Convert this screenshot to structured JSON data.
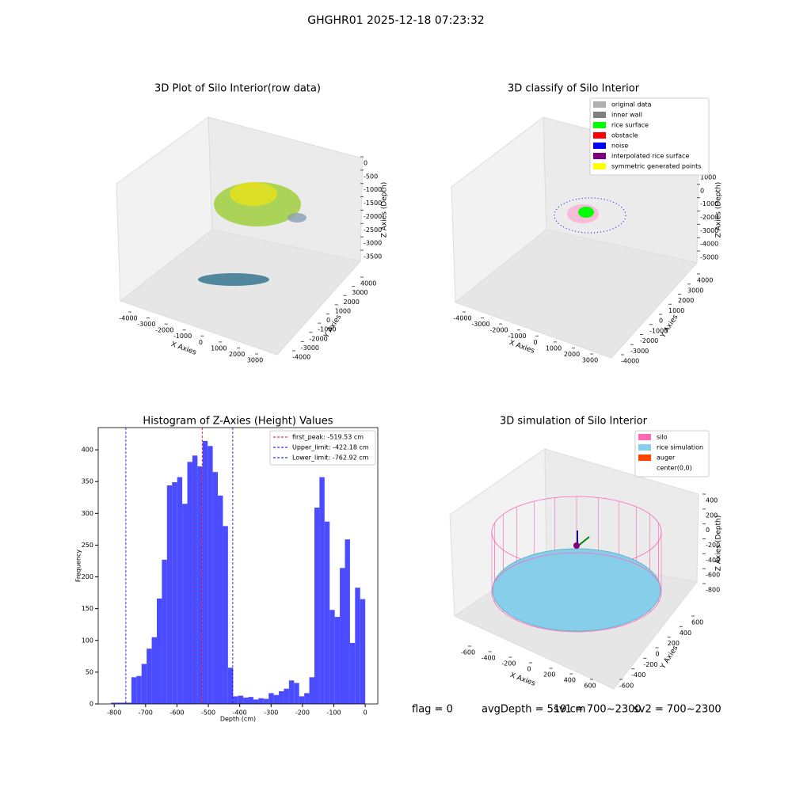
{
  "title": "GHGHR01 2025-12-18 07:23:32",
  "footer": [
    "flag = 0",
    "avgDepth = 519 cm",
    "sv1 = 700~2300",
    "sv2 = 700~2300"
  ],
  "chart_data": [
    {
      "type": "scatter3d",
      "title": "3D Plot of Silo Interior(row data)",
      "xlabel": "X Axies",
      "ylabel": "Y Axies",
      "zlabel": "Z Axies (Depth)",
      "xlim": [
        -4000,
        3000
      ],
      "xticks": [
        -4000,
        -3000,
        -2000,
        -1000,
        0,
        1000,
        2000,
        3000
      ],
      "ylim": [
        -4000,
        4000
      ],
      "yticks": [
        -4000,
        -3000,
        -2000,
        -1000,
        0,
        1000,
        2000,
        3000,
        4000
      ],
      "zlim": [
        0,
        -3500
      ],
      "zticks": [
        0,
        -500,
        -1000,
        -1500,
        -2000,
        -2500,
        -3000,
        -3500
      ]
    },
    {
      "type": "scatter3d",
      "title": "3D classify of Silo Interior",
      "xlabel": "X Axies",
      "ylabel": "Y Axies",
      "zlabel": "Z Axies (Depth)",
      "xlim": [
        -4000,
        3000
      ],
      "xticks": [
        -4000,
        -3000,
        -2000,
        -1000,
        0,
        1000,
        2000,
        3000
      ],
      "ylim": [
        -4000,
        4000
      ],
      "yticks": [
        -4000,
        -3000,
        -2000,
        -1000,
        0,
        1000,
        2000,
        3000,
        4000
      ],
      "zlim": [
        1000,
        -5000
      ],
      "zticks": [
        1000,
        0,
        -1000,
        -2000,
        -3000,
        -4000,
        -5000
      ],
      "series": [
        {
          "name": "original data",
          "color": "#b0b0b0"
        },
        {
          "name": "inner wall",
          "color": "#808080"
        },
        {
          "name": "rice surface",
          "color": "#00ff00"
        },
        {
          "name": "obstacle",
          "color": "#ff0000"
        },
        {
          "name": "noise",
          "color": "#0000ff"
        },
        {
          "name": "interpolated rice surface",
          "color": "#800080"
        },
        {
          "name": "symmetric generated points",
          "color": "#ffff00"
        }
      ]
    },
    {
      "type": "histogram",
      "title": "Histogram of Z-Axies (Height) Values",
      "xlabel": "Depth (cm)",
      "ylabel": "Frequency",
      "color": "#4b4bff",
      "bins": [
        -810,
        -793.8,
        -777.6,
        -761.4,
        -745.2,
        -729,
        -712.8,
        -696.6,
        -680.4,
        -664.2,
        -648,
        -631.8,
        -615.6,
        -599.4,
        -583.2,
        -567,
        -550.8,
        -534.6,
        -518.4,
        -502.2,
        -486,
        -469.8,
        -453.6,
        -437.4,
        -421.2,
        -405,
        -388.8,
        -372.6,
        -356.4,
        -340.2,
        -324,
        -307.8,
        -291.6,
        -275.4,
        -259.2,
        -243,
        -226.8,
        -210.6,
        -194.4,
        -178.2,
        -162,
        -145.8,
        -129.6,
        -113.4,
        -97.2,
        -81,
        -64.8,
        -48.6,
        -32.4,
        -16.2,
        0
      ],
      "values": [
        2,
        2,
        2,
        2,
        42,
        44,
        63,
        87,
        105,
        166,
        227,
        344,
        349,
        357,
        315,
        381,
        391,
        374,
        414,
        406,
        365,
        328,
        280,
        57,
        12,
        13,
        10,
        11,
        7,
        9,
        8,
        17,
        14,
        20,
        24,
        37,
        33,
        12,
        17,
        42,
        309,
        357,
        287,
        148,
        137,
        214,
        259,
        96,
        183,
        165
      ],
      "xlim": [
        -851,
        40
      ],
      "xticks": [
        -800,
        -700,
        -600,
        -500,
        -400,
        -300,
        -200,
        -100,
        0
      ],
      "ylim": [
        0,
        435
      ],
      "yticks": [
        0,
        50,
        100,
        150,
        200,
        250,
        300,
        350,
        400
      ],
      "vlines": [
        {
          "label": "first_peak: -519.53 cm",
          "value": -519.53,
          "color": "#ff0000"
        },
        {
          "label": "Upper_limit: -422.18 cm",
          "value": -422.18,
          "color": "#0000ff"
        },
        {
          "label": "Lower_limit: -762.92 cm",
          "value": -762.92,
          "color": "#0000ff"
        }
      ]
    },
    {
      "type": "surface3d",
      "title": "3D simulation of Silo Interior",
      "xlabel": "X Axies",
      "ylabel": "Y Axies",
      "zlabel": "Z Axies (Depth)",
      "xlim": [
        -600,
        600
      ],
      "xticks": [
        -600,
        -400,
        -200,
        0,
        200,
        400,
        600
      ],
      "ylim": [
        -600,
        600
      ],
      "yticks": [
        -600,
        -400,
        -200,
        0,
        200,
        400,
        600
      ],
      "zlim": [
        400,
        -800
      ],
      "zticks": [
        400,
        200,
        0,
        -200,
        -400,
        -600,
        -800
      ],
      "series": [
        {
          "name": "silo",
          "color": "#ff69b4"
        },
        {
          "name": "rice simulation",
          "color": "#87ceeb"
        },
        {
          "name": "auger",
          "color": "#ff4500"
        },
        {
          "name": "center(0,0)",
          "color": null
        }
      ]
    }
  ]
}
